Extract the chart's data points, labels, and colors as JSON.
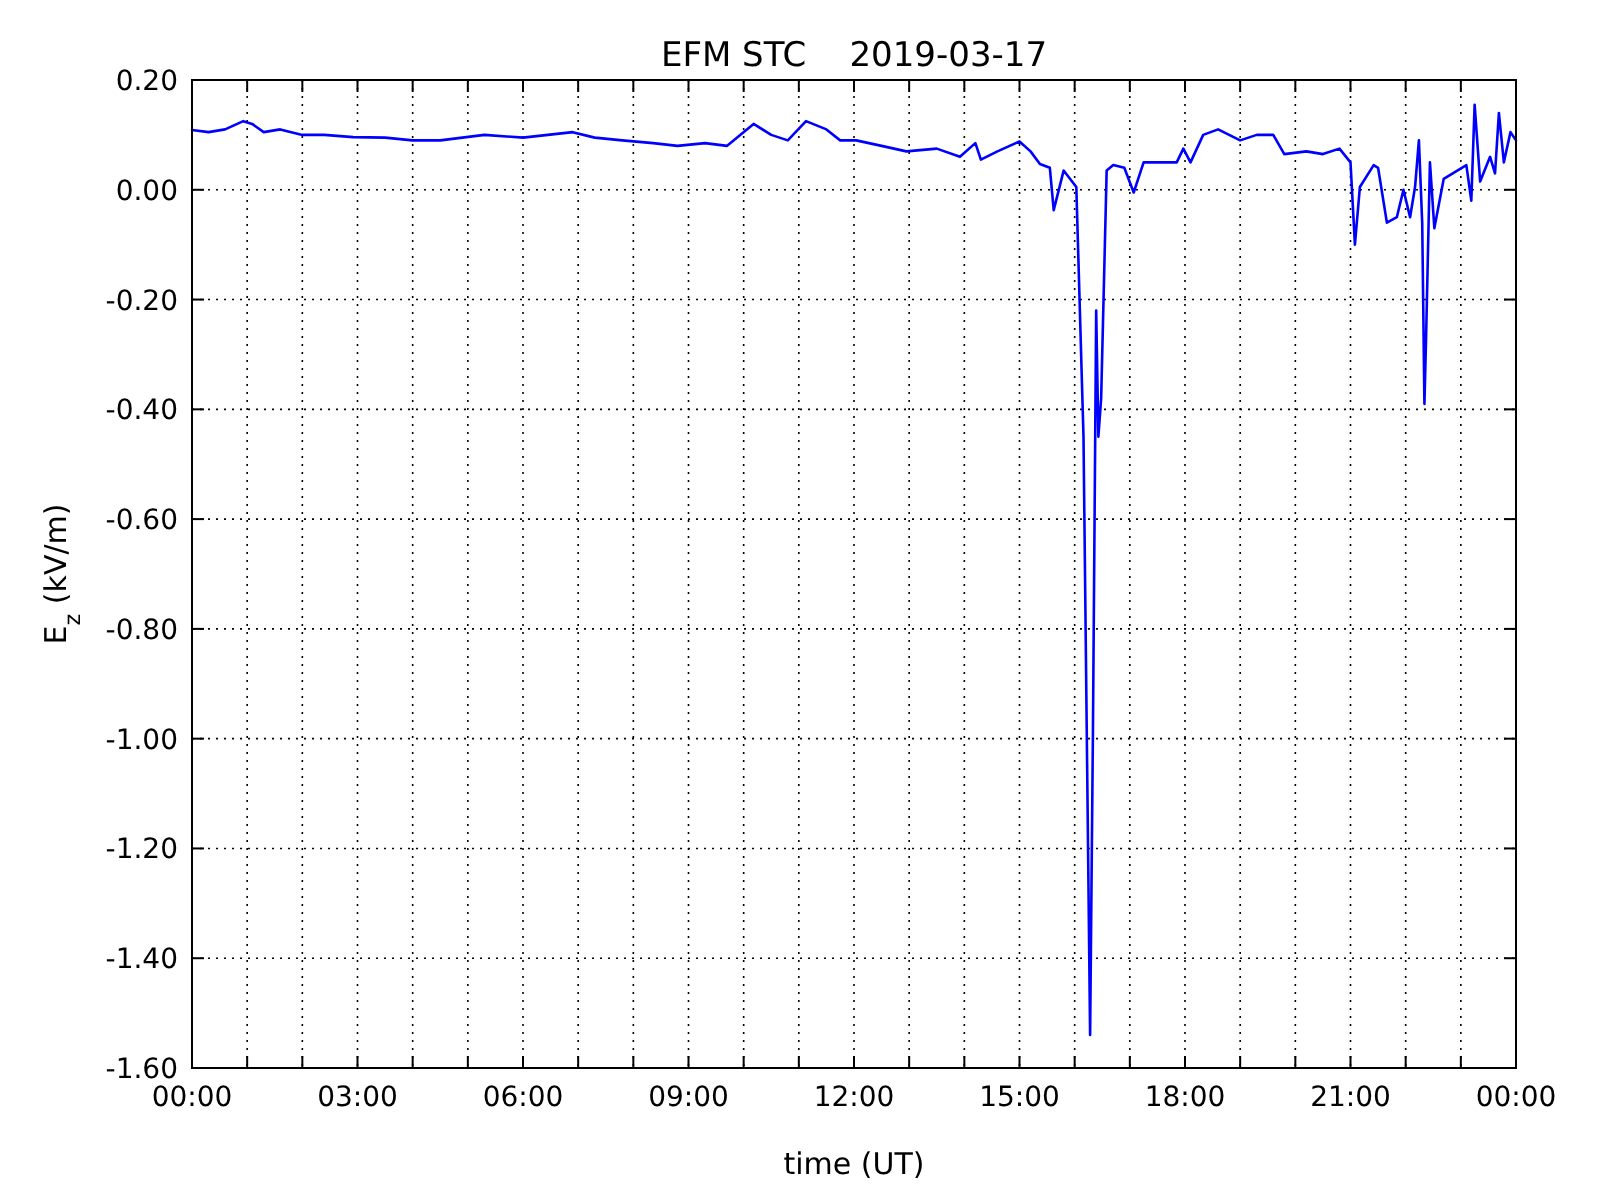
{
  "chart_data": {
    "type": "line",
    "title": "EFM STC    2019-03-17",
    "xlabel": "time (UT)",
    "ylabel": "E$_{z}$ (kV/m)",
    "x": [
      0,
      0.3,
      0.6,
      0.93,
      1.09,
      1.3,
      1.6,
      2.0,
      2.4,
      2.92,
      3.5,
      4.0,
      4.5,
      5.3,
      6.0,
      6.9,
      7.3,
      7.8,
      8.36,
      8.8,
      9.3,
      9.7,
      10.18,
      10.5,
      10.8,
      11.13,
      11.5,
      11.75,
      12.04,
      12.5,
      12.95,
      13.5,
      13.92,
      14.2,
      14.3,
      14.6,
      15.0,
      15.2,
      15.37,
      15.55,
      15.62,
      15.8,
      16.03,
      16.16,
      16.28,
      16.33,
      16.39,
      16.43,
      16.48,
      16.58,
      16.7,
      16.9,
      17.07,
      17.25,
      17.5,
      17.85,
      17.97,
      18.1,
      18.33,
      18.6,
      19.0,
      19.3,
      19.6,
      19.8,
      20.2,
      20.5,
      20.8,
      21.0,
      21.08,
      21.17,
      21.42,
      21.5,
      21.66,
      21.84,
      21.96,
      22.08,
      22.17,
      22.24,
      22.3,
      22.34,
      22.37,
      22.44,
      22.52,
      22.69,
      23.1,
      23.19,
      23.25,
      23.35,
      23.53,
      23.62,
      23.69,
      23.78,
      23.9,
      24.0
    ],
    "series": [
      {
        "color": "#0000ff",
        "values": [
          0.109,
          0.105,
          0.11,
          0.125,
          0.12,
          0.105,
          0.11,
          0.1,
          0.1,
          0.096,
          0.095,
          0.09,
          0.09,
          0.1,
          0.095,
          0.105,
          0.095,
          0.09,
          0.085,
          0.08,
          0.085,
          0.08,
          0.12,
          0.1,
          0.09,
          0.125,
          0.11,
          0.09,
          0.09,
          0.08,
          0.07,
          0.075,
          0.06,
          0.085,
          0.055,
          0.07,
          0.088,
          0.07,
          0.047,
          0.04,
          -0.037,
          0.035,
          0.005,
          -0.45,
          -1.54,
          -1.0,
          -0.22,
          -0.45,
          -0.38,
          0.035,
          0.045,
          0.04,
          -0.005,
          0.05,
          0.05,
          0.05,
          0.075,
          0.05,
          0.1,
          0.11,
          0.09,
          0.1,
          0.1,
          0.065,
          0.07,
          0.065,
          0.075,
          0.05,
          -0.1,
          0.005,
          0.045,
          0.04,
          -0.06,
          -0.05,
          0.0,
          -0.05,
          0.005,
          0.09,
          -0.06,
          -0.39,
          -0.27,
          0.05,
          -0.07,
          0.02,
          0.045,
          -0.02,
          0.155,
          0.015,
          0.06,
          0.03,
          0.14,
          0.05,
          0.105,
          0.09
        ]
      }
    ],
    "xlim": [
      0,
      24
    ],
    "ylim": [
      -1.6,
      0.2
    ],
    "xticks": [
      {
        "value": 0,
        "label": "00:00"
      },
      {
        "value": 1,
        "label": null
      },
      {
        "value": 2,
        "label": null
      },
      {
        "value": 3,
        "label": "03:00"
      },
      {
        "value": 4,
        "label": null
      },
      {
        "value": 5,
        "label": null
      },
      {
        "value": 6,
        "label": "06:00"
      },
      {
        "value": 7,
        "label": null
      },
      {
        "value": 8,
        "label": null
      },
      {
        "value": 9,
        "label": "09:00"
      },
      {
        "value": 10,
        "label": null
      },
      {
        "value": 11,
        "label": null
      },
      {
        "value": 12,
        "label": "12:00"
      },
      {
        "value": 13,
        "label": null
      },
      {
        "value": 14,
        "label": null
      },
      {
        "value": 15,
        "label": "15:00"
      },
      {
        "value": 16,
        "label": null
      },
      {
        "value": 17,
        "label": null
      },
      {
        "value": 18,
        "label": "18:00"
      },
      {
        "value": 19,
        "label": null
      },
      {
        "value": 20,
        "label": null
      },
      {
        "value": 21,
        "label": "21:00"
      },
      {
        "value": 22,
        "label": null
      },
      {
        "value": 23,
        "label": null
      },
      {
        "value": 24,
        "label": "00:00"
      }
    ],
    "yticks": [
      {
        "value": -1.6,
        "label": "-1.60"
      },
      {
        "value": -1.4,
        "label": "-1.40"
      },
      {
        "value": -1.2,
        "label": "-1.20"
      },
      {
        "value": -1.0,
        "label": "-1.00"
      },
      {
        "value": -0.8,
        "label": "-0.80"
      },
      {
        "value": -0.6,
        "label": "-0.60"
      },
      {
        "value": -0.4,
        "label": "-0.40"
      },
      {
        "value": -0.2,
        "label": "-0.20"
      },
      {
        "value": 0,
        "label": "0.00"
      },
      {
        "value": 0.2,
        "label": "0.20"
      }
    ],
    "grid": true,
    "line_style": "solid",
    "marker": "none"
  }
}
